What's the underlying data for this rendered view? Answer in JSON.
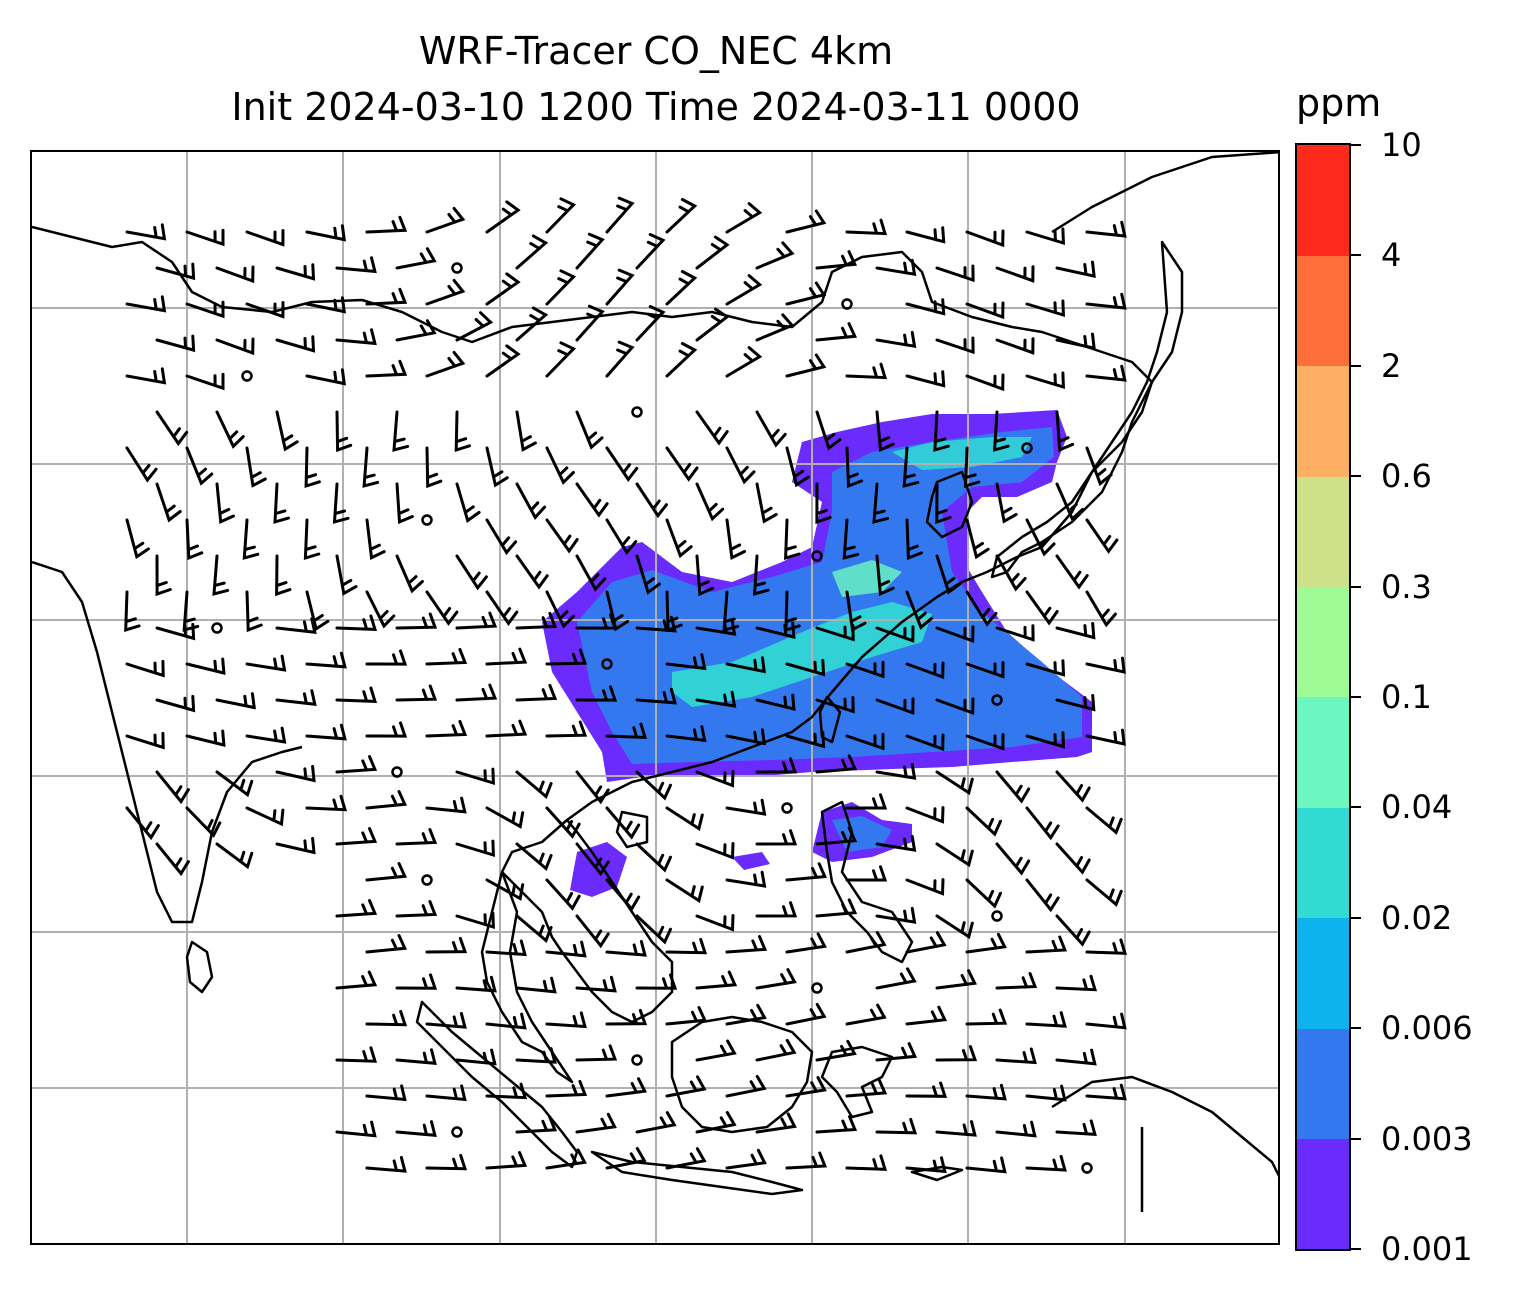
{
  "title": {
    "line1": "WRF-Tracer CO_NEC 4km",
    "line2": "Init 2024-03-10 1200 Time 2024-03-11 0000"
  },
  "colorbar": {
    "unit": "ppm",
    "levels": [
      "0.001",
      "0.003",
      "0.006",
      "0.02",
      "0.04",
      "0.1",
      "0.3",
      "0.6",
      "2",
      "4",
      "10"
    ],
    "colors": [
      "#6a2bfc",
      "#3478f0",
      "#0eb2ec",
      "#31dad3",
      "#6cf7c1",
      "#9efb96",
      "#cfe08a",
      "#fdb064",
      "#fe6e3b",
      "#fe2a1c"
    ]
  },
  "map": {
    "gridlines": true,
    "projection": "lambert-conformal",
    "variable": "CO_NEC tracer concentration with wind barbs",
    "colors": {
      "coast": "#000000",
      "grid": "#b0b0b0",
      "barb": "#000000"
    }
  }
}
